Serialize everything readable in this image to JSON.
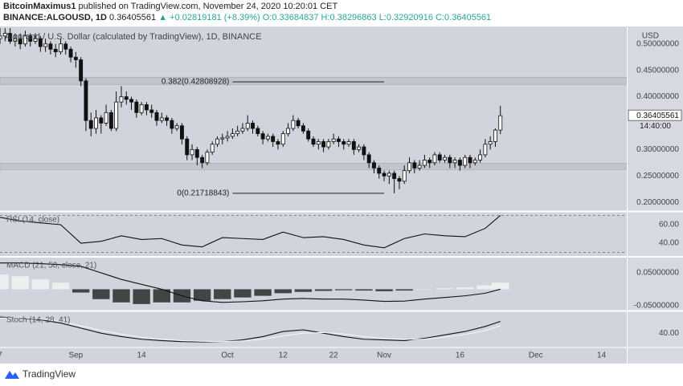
{
  "header": {
    "author": "BitcoinMaximus1",
    "published": "published on TradingView.com, November 24, 2020 10:20:01 CET",
    "symbol": "BINANCE:ALGOUSD, 1D",
    "last": "0.36405561",
    "change": "▲ +0.02819181 (+8.39%)",
    "ohlc": "O:0.33684837 H:0.38296863 L:0.32920916 C:0.36405561"
  },
  "footer": {
    "brand": "TradingView"
  },
  "chart_data": [
    {
      "type": "candlestick",
      "title": "Algorand / U.S. Dollar (calculated by TradingView), 1D, BINANCE",
      "y_unit": "USD",
      "up_color": "#ffffff",
      "down_color": "#111111",
      "x": [
        "2020-08-17",
        "2020-08-18",
        "2020-08-19",
        "2020-08-20",
        "2020-08-21",
        "2020-08-22",
        "2020-08-23",
        "2020-08-24",
        "2020-08-25",
        "2020-08-26",
        "2020-08-27",
        "2020-08-28",
        "2020-08-29",
        "2020-08-30",
        "2020-08-31",
        "2020-09-01",
        "2020-09-02",
        "2020-09-03",
        "2020-09-04",
        "2020-09-05",
        "2020-09-06",
        "2020-09-07",
        "2020-09-08",
        "2020-09-09",
        "2020-09-10",
        "2020-09-11",
        "2020-09-12",
        "2020-09-13",
        "2020-09-14",
        "2020-09-15",
        "2020-09-16",
        "2020-09-17",
        "2020-09-18",
        "2020-09-19",
        "2020-09-20",
        "2020-09-21",
        "2020-09-22",
        "2020-09-23",
        "2020-09-24",
        "2020-09-25",
        "2020-09-26",
        "2020-09-27",
        "2020-09-28",
        "2020-09-29",
        "2020-09-30",
        "2020-10-01",
        "2020-10-02",
        "2020-10-03",
        "2020-10-04",
        "2020-10-05",
        "2020-10-06",
        "2020-10-07",
        "2020-10-08",
        "2020-10-09",
        "2020-10-10",
        "2020-10-11",
        "2020-10-12",
        "2020-10-13",
        "2020-10-14",
        "2020-10-15",
        "2020-10-16",
        "2020-10-17",
        "2020-10-18",
        "2020-10-19",
        "2020-10-20",
        "2020-10-21",
        "2020-10-22",
        "2020-10-23",
        "2020-10-24",
        "2020-10-25",
        "2020-10-26",
        "2020-10-27",
        "2020-10-28",
        "2020-10-29",
        "2020-10-30",
        "2020-10-31",
        "2020-11-01",
        "2020-11-02",
        "2020-11-03",
        "2020-11-04",
        "2020-11-05",
        "2020-11-06",
        "2020-11-07",
        "2020-11-08",
        "2020-11-09",
        "2020-11-10",
        "2020-11-11",
        "2020-11-12",
        "2020-11-13",
        "2020-11-14",
        "2020-11-15",
        "2020-11-16",
        "2020-11-17",
        "2020-11-18",
        "2020-11-19",
        "2020-11-20",
        "2020-11-21",
        "2020-11-22",
        "2020-11-23",
        "2020-11-24"
      ],
      "open": [
        0.51,
        0.515,
        0.52,
        0.505,
        0.51,
        0.5,
        0.515,
        0.505,
        0.51,
        0.495,
        0.5,
        0.49,
        0.485,
        0.5,
        0.49,
        0.475,
        0.47,
        0.43,
        0.355,
        0.34,
        0.36,
        0.35,
        0.37,
        0.34,
        0.39,
        0.4,
        0.395,
        0.39,
        0.37,
        0.385,
        0.375,
        0.37,
        0.355,
        0.36,
        0.355,
        0.34,
        0.345,
        0.32,
        0.29,
        0.3,
        0.285,
        0.275,
        0.295,
        0.31,
        0.32,
        0.322,
        0.325,
        0.33,
        0.335,
        0.34,
        0.35,
        0.34,
        0.33,
        0.32,
        0.325,
        0.315,
        0.31,
        0.33,
        0.34,
        0.355,
        0.345,
        0.335,
        0.32,
        0.31,
        0.315,
        0.305,
        0.315,
        0.32,
        0.315,
        0.31,
        0.315,
        0.3,
        0.305,
        0.29,
        0.275,
        0.265,
        0.255,
        0.25,
        0.255,
        0.245,
        0.24,
        0.26,
        0.275,
        0.265,
        0.27,
        0.28,
        0.275,
        0.29,
        0.28,
        0.285,
        0.275,
        0.28,
        0.27,
        0.285,
        0.275,
        0.28,
        0.29,
        0.31,
        0.315,
        0.33684837
      ],
      "high": [
        0.53,
        0.535,
        0.53,
        0.52,
        0.52,
        0.525,
        0.52,
        0.52,
        0.515,
        0.51,
        0.505,
        0.5,
        0.51,
        0.505,
        0.495,
        0.485,
        0.475,
        0.435,
        0.37,
        0.375,
        0.365,
        0.385,
        0.375,
        0.41,
        0.42,
        0.41,
        0.4,
        0.395,
        0.39,
        0.39,
        0.385,
        0.375,
        0.37,
        0.365,
        0.36,
        0.35,
        0.35,
        0.325,
        0.31,
        0.305,
        0.29,
        0.3,
        0.315,
        0.325,
        0.33,
        0.335,
        0.34,
        0.345,
        0.35,
        0.365,
        0.355,
        0.345,
        0.335,
        0.33,
        0.33,
        0.32,
        0.335,
        0.35,
        0.365,
        0.36,
        0.35,
        0.34,
        0.325,
        0.32,
        0.32,
        0.32,
        0.33,
        0.325,
        0.32,
        0.32,
        0.32,
        0.31,
        0.31,
        0.295,
        0.28,
        0.27,
        0.26,
        0.26,
        0.26,
        0.25,
        0.27,
        0.285,
        0.28,
        0.28,
        0.29,
        0.285,
        0.295,
        0.295,
        0.29,
        0.29,
        0.285,
        0.285,
        0.29,
        0.29,
        0.285,
        0.3,
        0.32,
        0.325,
        0.34,
        0.38296863
      ],
      "low": [
        0.5,
        0.505,
        0.5,
        0.495,
        0.49,
        0.495,
        0.495,
        0.5,
        0.485,
        0.485,
        0.48,
        0.475,
        0.48,
        0.48,
        0.465,
        0.455,
        0.42,
        0.335,
        0.325,
        0.33,
        0.33,
        0.345,
        0.335,
        0.335,
        0.38,
        0.385,
        0.375,
        0.36,
        0.365,
        0.365,
        0.36,
        0.345,
        0.35,
        0.345,
        0.33,
        0.335,
        0.31,
        0.28,
        0.28,
        0.27,
        0.265,
        0.27,
        0.29,
        0.305,
        0.31,
        0.315,
        0.32,
        0.325,
        0.33,
        0.335,
        0.33,
        0.325,
        0.31,
        0.315,
        0.305,
        0.3,
        0.305,
        0.325,
        0.335,
        0.34,
        0.33,
        0.315,
        0.305,
        0.3,
        0.295,
        0.3,
        0.31,
        0.305,
        0.3,
        0.305,
        0.29,
        0.295,
        0.28,
        0.265,
        0.255,
        0.245,
        0.24,
        0.235,
        0.217,
        0.225,
        0.235,
        0.255,
        0.255,
        0.26,
        0.265,
        0.265,
        0.27,
        0.275,
        0.275,
        0.265,
        0.265,
        0.26,
        0.265,
        0.265,
        0.27,
        0.275,
        0.285,
        0.3,
        0.305,
        0.32920916
      ],
      "close": [
        0.515,
        0.52,
        0.505,
        0.51,
        0.5,
        0.515,
        0.505,
        0.51,
        0.495,
        0.5,
        0.49,
        0.485,
        0.5,
        0.49,
        0.475,
        0.47,
        0.43,
        0.355,
        0.34,
        0.36,
        0.35,
        0.37,
        0.34,
        0.39,
        0.4,
        0.395,
        0.39,
        0.37,
        0.385,
        0.375,
        0.37,
        0.355,
        0.36,
        0.355,
        0.34,
        0.345,
        0.32,
        0.29,
        0.3,
        0.285,
        0.275,
        0.295,
        0.31,
        0.32,
        0.322,
        0.325,
        0.33,
        0.335,
        0.34,
        0.35,
        0.34,
        0.33,
        0.32,
        0.325,
        0.315,
        0.31,
        0.33,
        0.34,
        0.355,
        0.345,
        0.335,
        0.32,
        0.31,
        0.315,
        0.305,
        0.315,
        0.32,
        0.315,
        0.31,
        0.315,
        0.3,
        0.305,
        0.29,
        0.275,
        0.265,
        0.255,
        0.25,
        0.255,
        0.245,
        0.24,
        0.26,
        0.275,
        0.265,
        0.27,
        0.28,
        0.275,
        0.29,
        0.28,
        0.285,
        0.275,
        0.28,
        0.27,
        0.285,
        0.275,
        0.28,
        0.29,
        0.31,
        0.315,
        0.33684837,
        0.36405561
      ],
      "xlim": [
        "2020-08-17",
        "2020-12-19"
      ],
      "xticks": [
        {
          "value": "2020-08-17",
          "label": "7"
        },
        {
          "value": "2020-09-01",
          "label": "Sep"
        },
        {
          "value": "2020-09-14",
          "label": "14"
        },
        {
          "value": "2020-10-01",
          "label": "Oct"
        },
        {
          "value": "2020-10-12",
          "label": "12"
        },
        {
          "value": "2020-10-22",
          "label": "22"
        },
        {
          "value": "2020-11-01",
          "label": "Nov"
        },
        {
          "value": "2020-11-16",
          "label": "16"
        },
        {
          "value": "2020-12-01",
          "label": "Dec"
        },
        {
          "value": "2020-12-14",
          "label": "14"
        }
      ],
      "ylim": [
        0.185,
        0.53
      ],
      "yticks": [
        {
          "value": 0.5,
          "label": "0.50000000"
        },
        {
          "value": 0.45,
          "label": "0.45000000"
        },
        {
          "value": 0.4,
          "label": "0.40000000"
        },
        {
          "value": 0.3,
          "label": "0.30000000"
        },
        {
          "value": 0.25,
          "label": "0.25000000"
        },
        {
          "value": 0.2,
          "label": "0.20000000"
        }
      ],
      "bands": [
        [
          0.423,
          0.437
        ],
        [
          0.262,
          0.274
        ]
      ],
      "annotations": [
        {
          "label": "0.382(0.42808928)",
          "value": 0.42808928,
          "x": [
            "2020-10-02",
            "2020-11-01"
          ]
        },
        {
          "label": "0(0.21718843)",
          "value": 0.21718843,
          "x": [
            "2020-10-02",
            "2020-11-01"
          ]
        }
      ],
      "last_price": {
        "value": 0.36405561,
        "label": "0.36405561"
      },
      "countdown": "14:40:00"
    },
    {
      "type": "line",
      "title": "RSI (14, close)",
      "x": [
        "2020-08-17",
        "2020-08-21",
        "2020-08-25",
        "2020-08-29",
        "2020-09-02",
        "2020-09-06",
        "2020-09-10",
        "2020-09-14",
        "2020-09-18",
        "2020-09-22",
        "2020-09-26",
        "2020-09-30",
        "2020-10-04",
        "2020-10-08",
        "2020-10-12",
        "2020-10-16",
        "2020-10-20",
        "2020-10-24",
        "2020-10-28",
        "2020-11-01",
        "2020-11-05",
        "2020-11-09",
        "2020-11-13",
        "2020-11-17",
        "2020-11-21",
        "2020-11-24"
      ],
      "series": [
        {
          "color": "#111111",
          "values": [
            68,
            64,
            62,
            60,
            40,
            42,
            48,
            44,
            45,
            38,
            36,
            46,
            45,
            44,
            52,
            46,
            47,
            44,
            38,
            35,
            45,
            50,
            48,
            47,
            56,
            70
          ]
        }
      ],
      "hlines": [
        70,
        30
      ],
      "ylim": [
        27,
        73
      ],
      "yticks": [
        {
          "value": 60,
          "label": "60.00"
        },
        {
          "value": 40,
          "label": "40.00"
        }
      ]
    },
    {
      "type": "macd",
      "title": "MACD (21, 50, close, 21)",
      "x": [
        "2020-08-17",
        "2020-08-21",
        "2020-08-25",
        "2020-08-29",
        "2020-09-02",
        "2020-09-06",
        "2020-09-10",
        "2020-09-14",
        "2020-09-18",
        "2020-09-22",
        "2020-09-26",
        "2020-09-30",
        "2020-10-04",
        "2020-10-08",
        "2020-10-12",
        "2020-10-16",
        "2020-10-20",
        "2020-10-24",
        "2020-10-28",
        "2020-11-01",
        "2020-11-05",
        "2020-11-09",
        "2020-11-13",
        "2020-11-17",
        "2020-11-21",
        "2020-11-24"
      ],
      "series": [
        {
          "color": "#111111",
          "values": [
            0.08,
            0.08,
            0.078,
            0.075,
            0.07,
            0.05,
            0.03,
            0.015,
            0,
            -0.02,
            -0.035,
            -0.04,
            -0.038,
            -0.035,
            -0.03,
            -0.028,
            -0.03,
            -0.03,
            -0.033,
            -0.037,
            -0.036,
            -0.03,
            -0.025,
            -0.02,
            -0.012,
            0
          ]
        }
      ],
      "histogram": [
        0.045,
        0.04,
        0.03,
        0.02,
        -0.01,
        -0.03,
        -0.04,
        -0.045,
        -0.04,
        -0.04,
        -0.035,
        -0.03,
        -0.025,
        -0.02,
        -0.012,
        -0.008,
        -0.005,
        -0.003,
        -0.004,
        -0.006,
        -0.004,
        0.001,
        0.003,
        0.006,
        0.012,
        0.02
      ],
      "pos_color": "#f2f2f2",
      "neg_color": "#2a2a2a",
      "ylim": [
        -0.06,
        0.094
      ],
      "yticks": [
        {
          "value": 0.05,
          "label": "0.05000000"
        },
        {
          "value": -0.05,
          "label": "-0.05000000"
        }
      ]
    },
    {
      "type": "line",
      "title": "Stoch (14, 28, 41)",
      "x": [
        "2020-08-17",
        "2020-08-21",
        "2020-08-25",
        "2020-08-29",
        "2020-09-02",
        "2020-09-06",
        "2020-09-10",
        "2020-09-14",
        "2020-09-18",
        "2020-09-22",
        "2020-09-26",
        "2020-09-30",
        "2020-10-04",
        "2020-10-08",
        "2020-10-12",
        "2020-10-16",
        "2020-10-20",
        "2020-10-24",
        "2020-10-28",
        "2020-11-01",
        "2020-11-05",
        "2020-11-09",
        "2020-11-13",
        "2020-11-17",
        "2020-11-21",
        "2020-11-24"
      ],
      "series": [
        {
          "color": "#111111",
          "values": [
            88,
            85,
            80,
            70,
            55,
            40,
            30,
            22,
            18,
            15,
            14,
            15,
            20,
            30,
            45,
            50,
            40,
            30,
            22,
            20,
            18,
            25,
            35,
            45,
            60,
            75
          ]
        },
        {
          "color": "#f4f4f4",
          "values": [
            85,
            86,
            82,
            75,
            62,
            48,
            37,
            28,
            22,
            18,
            16,
            15,
            17,
            22,
            32,
            40,
            42,
            38,
            30,
            25,
            22,
            22,
            28,
            36,
            48,
            62
          ]
        }
      ],
      "ylim": [
        0,
        100
      ],
      "yticks": [
        {
          "value": 40,
          "label": "40.00"
        }
      ]
    }
  ]
}
